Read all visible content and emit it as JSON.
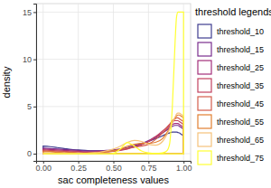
{
  "chart_data": {
    "type": "density",
    "x_label": "sac completeness values",
    "y_label": "density",
    "legend_title": "threshold legends",
    "legend": "right",
    "grid": true,
    "xlim": [
      -0.05,
      1.05
    ],
    "ylim": [
      -0.76,
      15.9
    ],
    "xticks": [
      {
        "value": 0,
        "label": "0.00"
      },
      {
        "value": 0.25,
        "label": "0.25"
      },
      {
        "value": 0.5,
        "label": "0.50"
      },
      {
        "value": 0.75,
        "label": "0.75"
      },
      {
        "value": 1,
        "label": "1.00"
      }
    ],
    "yticks": [
      0,
      5,
      10,
      15
    ],
    "x": [
      0,
      0.05,
      0.1,
      0.15,
      0.2,
      0.25,
      0.3,
      0.35,
      0.4,
      0.45,
      0.5,
      0.55,
      0.6,
      0.65,
      0.7,
      0.75,
      0.8,
      0.85,
      0.88,
      0.9,
      0.92,
      0.94,
      0.95,
      0.96,
      0.97,
      0.98,
      0.99,
      1.0
    ],
    "series": [
      {
        "name": "threshold_10",
        "color": "#3f3c8f",
        "values": [
          0.8,
          0.75,
          0.65,
          0.55,
          0.45,
          0.4,
          0.35,
          0.3,
          0.3,
          0.3,
          0.35,
          0.45,
          0.6,
          0.8,
          1.0,
          1.3,
          1.6,
          1.9,
          2.1,
          2.2,
          2.3,
          2.3,
          2.3,
          2.25,
          2.2,
          2.1,
          2.0,
          1.9
        ]
      },
      {
        "name": "threshold_15",
        "color": "#7a2e8e",
        "values": [
          0.6,
          0.55,
          0.5,
          0.45,
          0.4,
          0.35,
          0.3,
          0.3,
          0.3,
          0.35,
          0.4,
          0.5,
          0.65,
          0.85,
          1.1,
          1.4,
          1.8,
          2.2,
          2.5,
          2.7,
          2.9,
          3.0,
          3.0,
          3.0,
          2.9,
          2.8,
          2.7,
          2.6
        ]
      },
      {
        "name": "threshold_25",
        "color": "#a32f7a",
        "values": [
          0.5,
          0.45,
          0.4,
          0.35,
          0.3,
          0.25,
          0.2,
          0.2,
          0.2,
          0.25,
          0.3,
          0.4,
          0.55,
          0.75,
          1.0,
          1.3,
          1.7,
          2.2,
          2.6,
          2.9,
          3.1,
          3.2,
          3.2,
          3.2,
          3.1,
          3.0,
          2.9,
          2.8
        ]
      },
      {
        "name": "threshold_35",
        "color": "#c2425f",
        "values": [
          0.4,
          0.35,
          0.3,
          0.25,
          0.2,
          0.2,
          0.15,
          0.15,
          0.2,
          0.2,
          0.25,
          0.35,
          0.5,
          0.7,
          0.95,
          1.3,
          1.8,
          2.4,
          2.8,
          3.1,
          3.4,
          3.5,
          3.5,
          3.5,
          3.4,
          3.3,
          3.2,
          3.1
        ]
      },
      {
        "name": "threshold_45",
        "color": "#d45d4c",
        "values": [
          0.3,
          0.25,
          0.2,
          0.2,
          0.15,
          0.1,
          0.1,
          0.1,
          0.15,
          0.2,
          0.3,
          0.45,
          0.6,
          0.7,
          0.8,
          1.0,
          1.5,
          2.2,
          2.7,
          3.1,
          3.5,
          3.7,
          3.8,
          3.8,
          3.7,
          3.6,
          3.5,
          3.4
        ]
      },
      {
        "name": "threshold_55",
        "color": "#e27f30",
        "values": [
          0.2,
          0.2,
          0.15,
          0.1,
          0.1,
          0.05,
          0.05,
          0.1,
          0.1,
          0.2,
          0.3,
          0.5,
          0.8,
          1.0,
          1.1,
          1.1,
          1.2,
          1.6,
          2.2,
          2.7,
          3.3,
          3.8,
          4.0,
          4.1,
          4.1,
          4.0,
          3.9,
          3.8
        ]
      },
      {
        "name": "threshold_65",
        "color": "#f5c27a",
        "values": [
          0.1,
          0.1,
          0.05,
          0.05,
          0.05,
          0.05,
          0.05,
          0.1,
          0.15,
          0.3,
          0.5,
          0.8,
          1.2,
          1.4,
          1.3,
          1.0,
          0.9,
          1.3,
          2.0,
          2.6,
          3.3,
          3.9,
          4.2,
          4.3,
          4.3,
          4.2,
          4.1,
          4.0
        ]
      },
      {
        "name": "threshold_75",
        "color": "#ffff33",
        "values": [
          0,
          0,
          0,
          0,
          0,
          0,
          0,
          0,
          0,
          0,
          0.05,
          0.5,
          1.2,
          0.8,
          0.3,
          0.1,
          0.05,
          0.1,
          0.3,
          1.0,
          5,
          12,
          14.5,
          15,
          15,
          15,
          15,
          15
        ]
      }
    ]
  }
}
